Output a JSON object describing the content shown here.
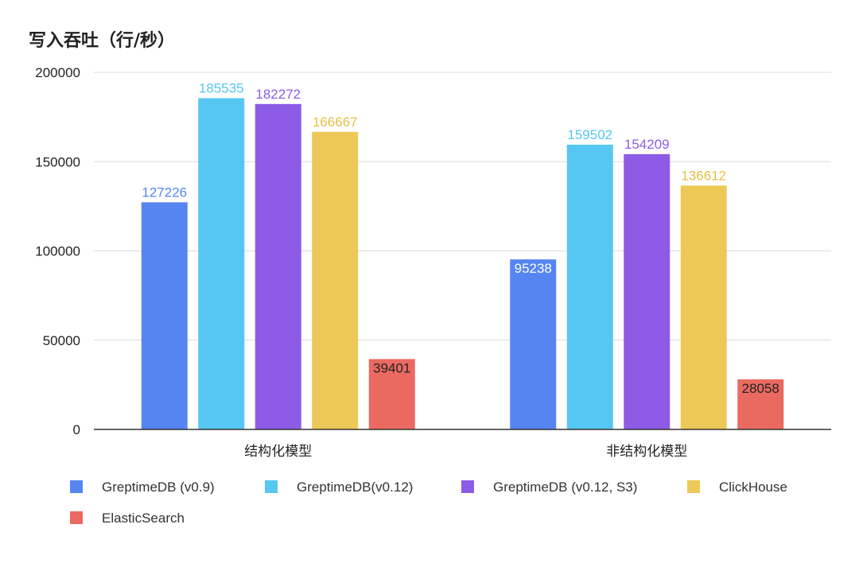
{
  "chart_data": {
    "type": "bar",
    "title": "写入吞吐（行/秒）",
    "categories": [
      "结构化模型",
      "非结构化模型"
    ],
    "series": [
      {
        "name": "GreptimeDB (v0.9)",
        "color": "#5585f1",
        "label_color": "#5585f1",
        "values": [
          127226,
          95238
        ]
      },
      {
        "name": "GreptimeDB(v0.12)",
        "color": "#56c7f1",
        "label_color": "#56c7f1",
        "values": [
          185535,
          159502
        ]
      },
      {
        "name": "GreptimeDB (v0.12, S3)",
        "color": "#8e5be7",
        "label_color": "#8e5be7",
        "values": [
          182272,
          154209
        ]
      },
      {
        "name": "ClickHouse",
        "color": "#ecc957",
        "label_color": "#e6bf45",
        "values": [
          166667,
          136612
        ]
      },
      {
        "name": "ElasticSearch",
        "color": "#ea6a61",
        "label_color": "#222222",
        "values": [
          39401,
          28058
        ]
      }
    ],
    "yticks": [
      "0",
      "50000",
      "100000",
      "150000",
      "200000"
    ],
    "ylim": [
      0,
      200000
    ],
    "grid": true,
    "legend_position": "bottom"
  }
}
